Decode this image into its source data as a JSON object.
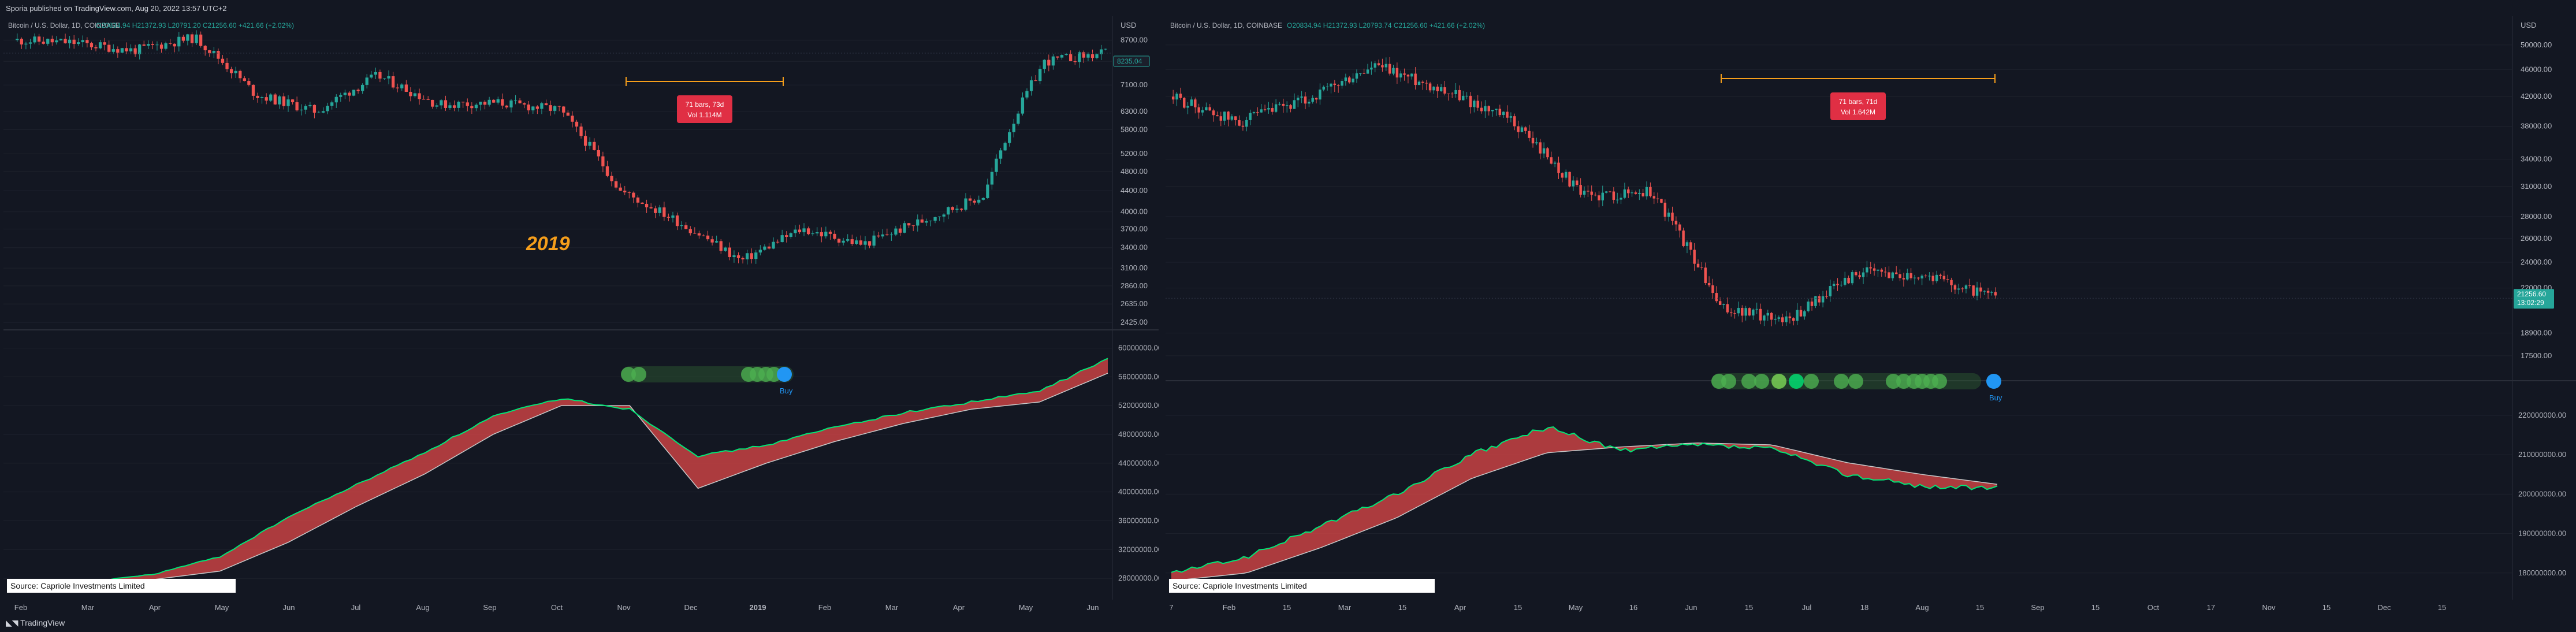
{
  "header": {
    "published": "Sporia published on TradingView.com, Aug 20, 2022 13:57 UTC+2"
  },
  "footer": {
    "brand": "TradingView"
  },
  "colors": {
    "up": "#26a69a",
    "down": "#ef5350",
    "fast_ma": "#00e676",
    "slow_ma": "#c8c8c8",
    "fill": "#e04848",
    "bg": "#131722",
    "grid": "#1e222d",
    "orange": "#f59e1b",
    "dot": "#4caf50",
    "buy": "#2196f3"
  },
  "chart_data": [
    {
      "type": "candlestick",
      "symbol_line": "Bitcoin / U.S. Dollar, 1D, COINBASE",
      "ohlc_line": "O20834.94  H21372.93  L20791.20  C21256.60  +421.66 (+2.02%)",
      "year_annotation": "2019",
      "date_range_label": [
        "71 bars, 73d",
        "Vol 1.114M"
      ],
      "price_scale_label": "USD",
      "price_ticks": [
        "8700.00",
        "7900.00",
        "7100.00",
        "6300.00",
        "5800.00",
        "5200.00",
        "4800.00",
        "4400.00",
        "4000.00",
        "3700.00",
        "3400.00",
        "3100.00",
        "2860.00",
        "2635.00",
        "2425.00"
      ],
      "current_price_tag": "8235.04",
      "x_ticks": [
        "Feb",
        "Mar",
        "Apr",
        "May",
        "Jun",
        "Jul",
        "Aug",
        "Sep",
        "Oct",
        "Nov",
        "Dec",
        "2019",
        "Feb",
        "Mar",
        "Apr",
        "May",
        "Jun"
      ],
      "x_bold_tick": "2019",
      "ylim": [
        2425,
        9200
      ],
      "log_scale": true,
      "price_path": {
        "x": [
          "Feb",
          "Mar",
          "Apr",
          "May",
          "Jun",
          "Jul",
          "Aug",
          "Sep",
          "Oct",
          "Nov",
          "Nov 20",
          "Dec",
          "Dec 15",
          "2019",
          "Feb",
          "Mar",
          "Apr",
          "May",
          "Jun"
        ],
        "close": [
          8700,
          8600,
          8300,
          8800,
          6800,
          6300,
          7400,
          6500,
          6550,
          6350,
          4400,
          3800,
          3200,
          3700,
          3450,
          3850,
          4300,
          7900,
          8200
        ]
      },
      "indicator": {
        "ticks": [
          "60000000.00",
          "56000000.00",
          "52000000.00",
          "48000000.00",
          "44000000.00",
          "40000000.00",
          "36000000.00",
          "32000000.00",
          "28000000.00"
        ],
        "ylim": [
          26000000,
          61000000
        ],
        "x": [
          "Feb",
          "Mar",
          "Apr",
          "May",
          "Jun",
          "Jul",
          "Aug",
          "Sep",
          "Oct",
          "Nov",
          "Dec",
          "2019",
          "Feb",
          "Mar",
          "Apr",
          "May",
          "Jun"
        ],
        "fast": [
          27000000,
          27500000,
          28500000,
          31000000,
          36500000,
          41000000,
          45500000,
          50500000,
          53000000,
          51500000,
          45000000,
          46500000,
          49000000,
          51000000,
          52500000,
          54000000,
          58500000
        ],
        "slow": [
          27000000,
          27200000,
          27800000,
          29000000,
          33000000,
          38000000,
          42500000,
          48000000,
          52000000,
          52000000,
          40500000,
          44000000,
          47000000,
          49500000,
          51500000,
          52500000,
          56500000
        ],
        "buy_label": "Buy"
      },
      "source_label": "Source: Capriole Investments Limited"
    },
    {
      "type": "candlestick",
      "symbol_line": "Bitcoin / U.S. Dollar, 1D, COINBASE",
      "ohlc_line": "O20834.94  H21372.93  L20793.74  C21256.60  +421.66 (+2.02%)",
      "date_range_label": [
        "71 bars, 71d",
        "Vol 1.642M"
      ],
      "price_scale_label": "USD",
      "price_ticks": [
        "50000.00",
        "46000.00",
        "42000.00",
        "38000.00",
        "34000.00",
        "31000.00",
        "28000.00",
        "26000.00",
        "24000.00",
        "22000.00",
        "18900.00",
        "17500.00"
      ],
      "current_price_tag": [
        "21256.60",
        "13:02:29"
      ],
      "x_ticks": [
        "7",
        "Feb",
        "15",
        "Mar",
        "15",
        "Apr",
        "15",
        "May",
        "16",
        "Jun",
        "15",
        "Jul",
        "18",
        "Aug",
        "15",
        "Sep",
        "15",
        "Oct",
        "17",
        "Nov",
        "15",
        "Dec",
        "15"
      ],
      "ylim": [
        16500,
        53000
      ],
      "log_scale": true,
      "price_path": {
        "x": [
          "Jan 7",
          "Feb",
          "Mar",
          "Apr",
          "Apr 15",
          "May",
          "May 16",
          "Jun",
          "Jun 15",
          "Jul",
          "Jul 18",
          "Aug",
          "Aug 15"
        ],
        "close": [
          42000,
          38500,
          41500,
          46500,
          43000,
          38500,
          30000,
          30500,
          20500,
          19800,
          23200,
          23000,
          21256
        ]
      },
      "indicator": {
        "ticks": [
          "220000000.00",
          "210000000.00",
          "200000000.00",
          "190000000.00",
          "180000000.00"
        ],
        "ylim": [
          175000000,
          226000000
        ],
        "x": [
          "Jan 7",
          "Feb",
          "Mar",
          "Apr",
          "May",
          "May 16",
          "Jun",
          "Jun 15",
          "Jul",
          "Jul 18",
          "Aug",
          "Aug 15"
        ],
        "fast": [
          180000000,
          184000000,
          192000000,
          200000000,
          210000000,
          217000000,
          211000000,
          212500000,
          211500000,
          205000000,
          202000000,
          201500000
        ],
        "slow": [
          178000000,
          180000000,
          186500000,
          194000000,
          204000000,
          210500000,
          212000000,
          213000000,
          212500000,
          208000000,
          205000000,
          202500000
        ],
        "buy_label": "Buy"
      },
      "source_label": "Source: Capriole Investments Limited"
    }
  ]
}
